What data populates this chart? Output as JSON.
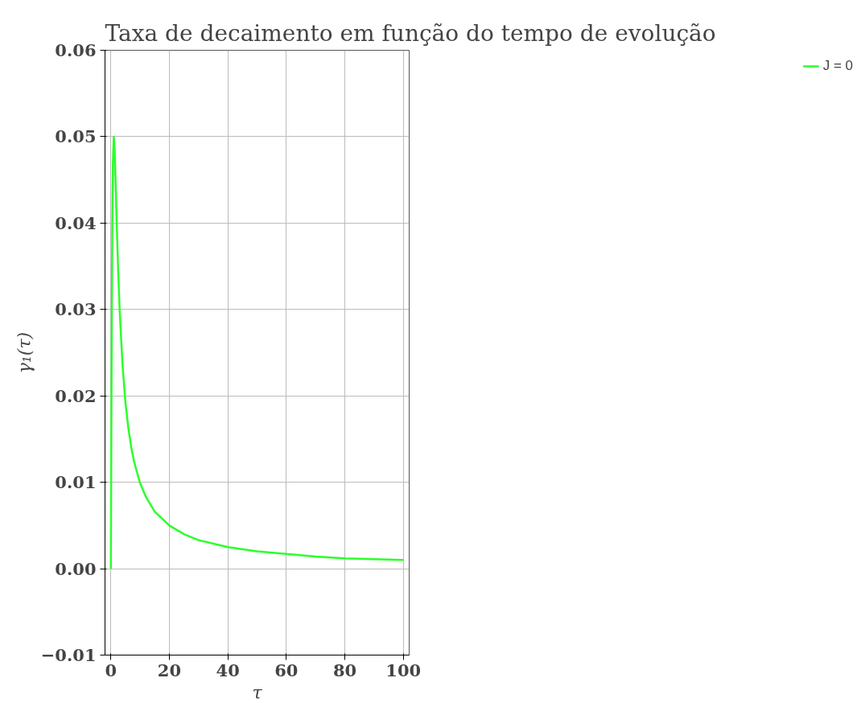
{
  "chart_data": {
    "type": "line",
    "title": "Taxa de decaimento em função do tempo de evolução",
    "xlabel": "τ",
    "ylabel": "γ₁(τ)",
    "x": [
      0,
      0.1,
      0.2,
      0.3,
      0.5,
      0.7,
      1,
      1.3,
      1.6,
      2,
      2.5,
      3,
      4,
      5,
      6,
      7,
      8,
      10,
      12,
      15,
      20,
      25,
      30,
      40,
      50,
      60,
      70,
      80,
      90,
      100
    ],
    "series": [
      {
        "name": "J = 0",
        "color": "#2bff2b",
        "values": [
          0,
          0.0099,
          0.0192,
          0.0275,
          0.04,
          0.047,
          0.05,
          0.0484,
          0.045,
          0.04,
          0.0345,
          0.03,
          0.0235,
          0.0192,
          0.0162,
          0.014,
          0.0123,
          0.0099,
          0.0083,
          0.0066,
          0.005,
          0.004,
          0.0033,
          0.0025,
          0.002,
          0.0017,
          0.0014,
          0.0012,
          0.0011,
          0.001
        ]
      }
    ],
    "xlim": [
      -2,
      102
    ],
    "ylim": [
      -0.01,
      0.06
    ],
    "xticks": [
      0,
      20,
      40,
      60,
      80,
      100
    ],
    "yticks": [
      {
        "value": -0.01,
        "label": "−0.01"
      },
      {
        "value": 0,
        "label": "0.00"
      },
      {
        "value": 0.01,
        "label": "0.01"
      },
      {
        "value": 0.02,
        "label": "0.02"
      },
      {
        "value": 0.03,
        "label": "0.03"
      },
      {
        "value": 0.04,
        "label": "0.04"
      },
      {
        "value": 0.05,
        "label": "0.05"
      },
      {
        "value": 0.06,
        "label": "0.06"
      }
    ],
    "grid": true,
    "legend": "right",
    "marker": "none",
    "line_style": "solid"
  }
}
